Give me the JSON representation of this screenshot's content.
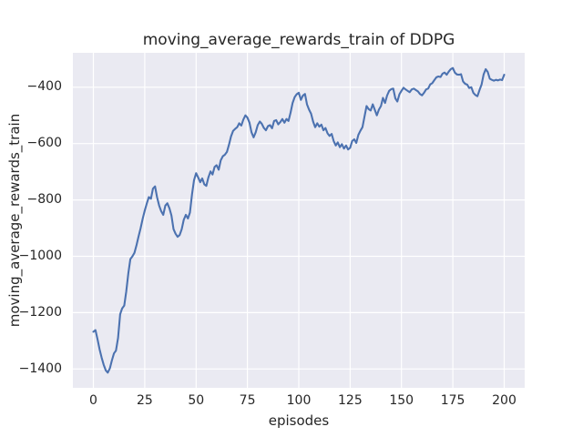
{
  "figure": {
    "background": "#FFFFFF"
  },
  "chart_data": {
    "type": "line",
    "title": "moving_average_rewards_train of DDPG",
    "xlabel": "episodes",
    "ylabel": "moving_average_rewards_train",
    "x_ticks": [
      0,
      25,
      50,
      75,
      100,
      125,
      150,
      175,
      200
    ],
    "x_tick_labels": [
      "0",
      "25",
      "50",
      "75",
      "100",
      "125",
      "150",
      "175",
      "200"
    ],
    "y_ticks": [
      -400,
      -600,
      -800,
      -1000,
      -1200,
      -1400
    ],
    "y_tick_labels": [
      "−400",
      "−600",
      "−800",
      "−1000",
      "−1200",
      "−1400"
    ],
    "xlim": [
      -10,
      210
    ],
    "ylim": [
      -1467,
      -278
    ],
    "grid": true,
    "legend_position": null,
    "style": {
      "plot_bg": "#EAEAF2",
      "grid_color": "#FFFFFF",
      "line_color": "#4C72B0",
      "text_color": "#262626"
    },
    "x": [
      0,
      1,
      2,
      3,
      4,
      5,
      6,
      7,
      8,
      9,
      10,
      11,
      12,
      13,
      14,
      15,
      16,
      17,
      18,
      19,
      20,
      21,
      22,
      23,
      24,
      25,
      26,
      27,
      28,
      29,
      30,
      31,
      32,
      33,
      34,
      35,
      36,
      37,
      38,
      39,
      40,
      41,
      42,
      43,
      44,
      45,
      46,
      47,
      48,
      49,
      50,
      51,
      52,
      53,
      54,
      55,
      56,
      57,
      58,
      59,
      60,
      61,
      62,
      63,
      64,
      65,
      66,
      67,
      68,
      69,
      70,
      71,
      72,
      73,
      74,
      75,
      76,
      77,
      78,
      79,
      80,
      81,
      82,
      83,
      84,
      85,
      86,
      87,
      88,
      89,
      90,
      91,
      92,
      93,
      94,
      95,
      96,
      97,
      98,
      99,
      100,
      101,
      102,
      103,
      104,
      105,
      106,
      107,
      108,
      109,
      110,
      111,
      112,
      113,
      114,
      115,
      116,
      117,
      118,
      119,
      120,
      121,
      122,
      123,
      124,
      125,
      126,
      127,
      128,
      129,
      130,
      131,
      132,
      133,
      134,
      135,
      136,
      137,
      138,
      139,
      140,
      141,
      142,
      143,
      144,
      145,
      146,
      147,
      148,
      149,
      150,
      151,
      152,
      153,
      154,
      155,
      156,
      157,
      158,
      159,
      160,
      161,
      162,
      163,
      164,
      165,
      166,
      167,
      168,
      169,
      170,
      171,
      172,
      173,
      174,
      175,
      176,
      177,
      178,
      179,
      180,
      181,
      182,
      183,
      184,
      185,
      186,
      187,
      188,
      189,
      190,
      191,
      192,
      193,
      194,
      195,
      196,
      197,
      198,
      199,
      200
    ],
    "values": [
      -1268,
      -1262,
      -1295,
      -1330,
      -1360,
      -1385,
      -1405,
      -1413,
      -1398,
      -1370,
      -1345,
      -1335,
      -1290,
      -1206,
      -1185,
      -1175,
      -1125,
      -1060,
      -1010,
      -1000,
      -988,
      -960,
      -930,
      -900,
      -866,
      -838,
      -812,
      -790,
      -796,
      -760,
      -752,
      -790,
      -820,
      -840,
      -853,
      -820,
      -812,
      -830,
      -855,
      -904,
      -920,
      -931,
      -925,
      -904,
      -871,
      -853,
      -866,
      -845,
      -780,
      -730,
      -705,
      -720,
      -737,
      -724,
      -745,
      -750,
      -720,
      -699,
      -710,
      -683,
      -677,
      -693,
      -660,
      -645,
      -640,
      -630,
      -605,
      -575,
      -555,
      -548,
      -542,
      -528,
      -536,
      -515,
      -500,
      -508,
      -526,
      -560,
      -578,
      -560,
      -535,
      -522,
      -530,
      -545,
      -553,
      -538,
      -535,
      -546,
      -520,
      -517,
      -532,
      -524,
      -513,
      -526,
      -513,
      -520,
      -490,
      -456,
      -435,
      -425,
      -420,
      -445,
      -430,
      -424,
      -461,
      -480,
      -494,
      -523,
      -542,
      -528,
      -540,
      -533,
      -553,
      -545,
      -564,
      -573,
      -566,
      -591,
      -607,
      -596,
      -613,
      -602,
      -618,
      -607,
      -621,
      -615,
      -591,
      -585,
      -598,
      -569,
      -555,
      -542,
      -505,
      -467,
      -478,
      -483,
      -461,
      -480,
      -500,
      -480,
      -467,
      -438,
      -456,
      -430,
      -413,
      -407,
      -405,
      -440,
      -451,
      -425,
      -413,
      -402,
      -408,
      -413,
      -418,
      -408,
      -405,
      -410,
      -415,
      -424,
      -429,
      -420,
      -408,
      -405,
      -390,
      -386,
      -375,
      -365,
      -362,
      -364,
      -352,
      -348,
      -356,
      -345,
      -336,
      -332,
      -348,
      -355,
      -356,
      -354,
      -380,
      -388,
      -391,
      -403,
      -400,
      -420,
      -428,
      -432,
      -410,
      -390,
      -355,
      -336,
      -346,
      -370,
      -374,
      -377,
      -374,
      -376,
      -373,
      -375,
      -356
    ]
  }
}
